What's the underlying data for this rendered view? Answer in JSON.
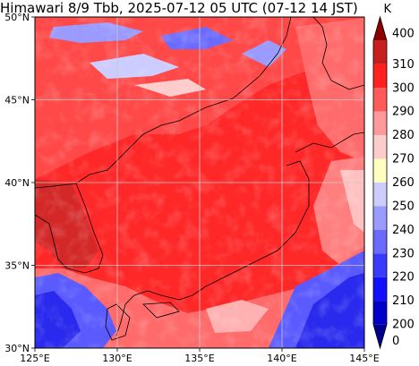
{
  "title": "Himawari 8/9 Tbb, 2025-07-12 05 UTC (07-12 14 JST)",
  "map": {
    "lon_range": [
      125,
      145
    ],
    "lat_range": [
      30,
      50
    ],
    "x_ticks": [
      "125°E",
      "130°E",
      "135°E",
      "140°E",
      "145°E"
    ],
    "y_ticks": [
      "50°N",
      "45°N",
      "40°N",
      "35°N",
      "30°N"
    ]
  },
  "colorbar": {
    "unit": "K",
    "labels": [
      "400",
      "310",
      "300",
      "290",
      "280",
      "270",
      "260",
      "250",
      "240",
      "230",
      "220",
      "210",
      "200",
      "0"
    ],
    "colors": [
      "#8b0000",
      "#c81e1e",
      "#ff2020",
      "#ff5a5a",
      "#ff9a9a",
      "#ffcccc",
      "#ffffc0",
      "#ccccff",
      "#9a9aff",
      "#6a6aff",
      "#3a3aff",
      "#1010ff",
      "#0000c8",
      "#00008b"
    ]
  }
}
